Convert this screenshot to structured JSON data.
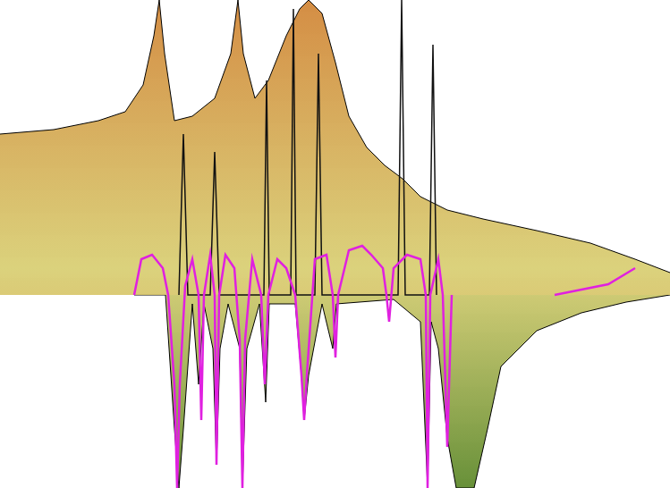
{
  "chart_data": {
    "type": "line",
    "grid": false,
    "tick_labels": false,
    "xlim": [
      0,
      749
    ],
    "ylim": [
      -216,
      330
    ],
    "series": [
      {
        "type": "area",
        "color": "#5f8a2e",
        "x": [
          150,
          185,
          195,
          200,
          205,
          215,
          222,
          228,
          238,
          242,
          246,
          255,
          268,
          271,
          276,
          290,
          297,
          301,
          330,
          337,
          340,
          345,
          360,
          372,
          376,
          440,
          470,
          478,
          482,
          490,
          500,
          510,
          530,
          545,
          560,
          600,
          650,
          700,
          749
        ],
        "values": [
          0,
          0,
          -150,
          -216,
          -150,
          -10,
          -100,
          -10,
          -60,
          -190,
          -60,
          -10,
          -60,
          -216,
          -60,
          -10,
          -120,
          -10,
          -10,
          -90,
          -140,
          -90,
          -10,
          -60,
          -10,
          -5,
          -30,
          -216,
          -30,
          -60,
          -160,
          -216,
          -216,
          -150,
          -80,
          -40,
          -20,
          -8,
          0
        ]
      },
      {
        "type": "area",
        "color": "#d2873a",
        "x": [
          0,
          60,
          110,
          140,
          160,
          172,
          178,
          184,
          195,
          215,
          240,
          258,
          266,
          272,
          285,
          300,
          320,
          335,
          345,
          360,
          375,
          390,
          410,
          430,
          450,
          470,
          500,
          540,
          600,
          660,
          710,
          749
        ],
        "values": [
          180,
          185,
          195,
          205,
          235,
          290,
          330,
          270,
          195,
          200,
          220,
          270,
          330,
          270,
          220,
          240,
          290,
          320,
          330,
          315,
          260,
          200,
          165,
          145,
          130,
          110,
          95,
          85,
          72,
          58,
          40,
          25
        ]
      },
      {
        "type": "line",
        "color": "#111111",
        "x": [
          200,
          205,
          210,
          235,
          240,
          245,
          295,
          298,
          301,
          325,
          328,
          331,
          352,
          356,
          360,
          445,
          449,
          453,
          480,
          484,
          488
        ],
        "values": [
          0,
          180,
          0,
          0,
          160,
          0,
          0,
          240,
          0,
          0,
          320,
          0,
          0,
          270,
          0,
          0,
          330,
          0,
          0,
          280,
          0
        ]
      },
      {
        "type": "line",
        "color": "#e020e0",
        "x": [
          150,
          158,
          170,
          182,
          188,
          195,
          198,
          201,
          207,
          215,
          222,
          225,
          228,
          235,
          240,
          242,
          245,
          252,
          262,
          268,
          271,
          274,
          282,
          292,
          296,
          300,
          310,
          320,
          330,
          337,
          340,
          343,
          352,
          365,
          372,
          375,
          378,
          390,
          405,
          415,
          428,
          432,
          435,
          440,
          455,
          470,
          476,
          478,
          481,
          490,
          495,
          500,
          505,
          560,
          620,
          680,
          710
        ],
        "values": [
          0,
          40,
          45,
          30,
          0,
          -100,
          -216,
          -100,
          10,
          40,
          0,
          -140,
          0,
          45,
          0,
          -190,
          0,
          45,
          30,
          -50,
          -216,
          -50,
          40,
          0,
          -100,
          0,
          40,
          30,
          0,
          -90,
          -140,
          -90,
          40,
          45,
          0,
          -70,
          0,
          50,
          55,
          45,
          30,
          0,
          -30,
          30,
          45,
          40,
          0,
          -216,
          0,
          40,
          0,
          -170,
          0,
          null,
          0,
          12,
          30
        ]
      }
    ]
  }
}
